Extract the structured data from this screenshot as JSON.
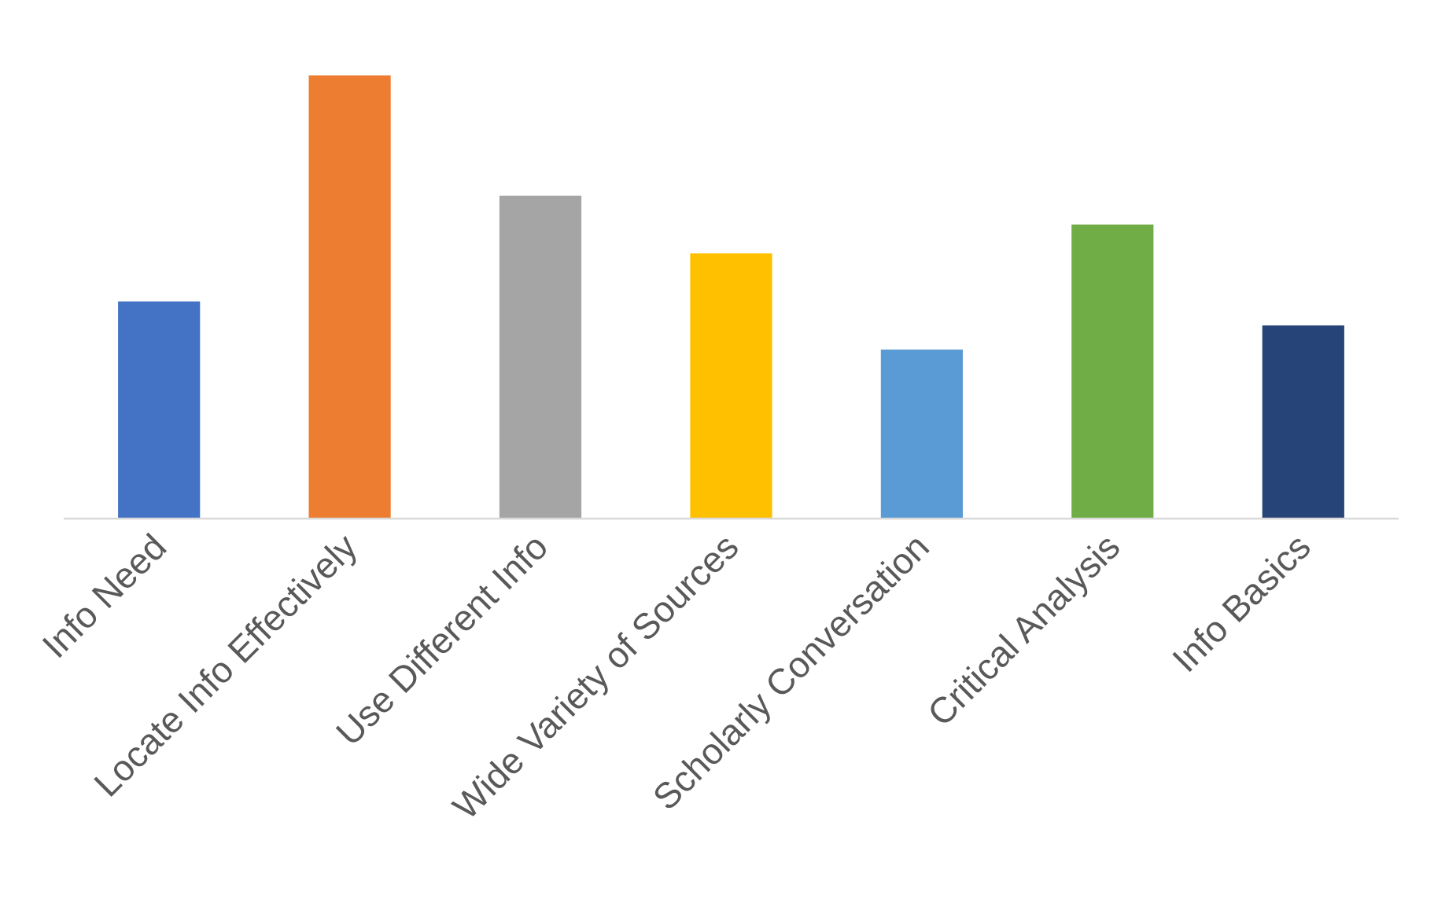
{
  "chart_data": {
    "type": "bar",
    "title": "",
    "xlabel": "",
    "ylabel": "",
    "categories": [
      "Info Need",
      "Locate Info Effectively",
      "Use Different Info",
      "Wide Variety of Sources",
      "Scholarly Conversation",
      "Critical Analysis",
      "Info Basics"
    ],
    "values": [
      4.5,
      9.2,
      6.7,
      5.5,
      3.5,
      6.1,
      4.0
    ],
    "colors": [
      "#4472C4",
      "#ED7D31",
      "#A5A5A5",
      "#FFC000",
      "#5B9BD5",
      "#70AD47",
      "#264478"
    ],
    "ylim": [
      0,
      10
    ],
    "grid": false,
    "legend": "none",
    "axis_color": "#D9D9D9",
    "label_color": "#595959"
  }
}
